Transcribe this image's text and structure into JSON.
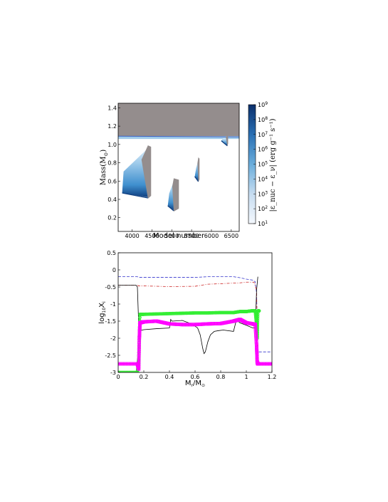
{
  "chart_data": [
    {
      "type": "heatmap",
      "xlabel": "Model number",
      "ylabel": "Mass(M",
      "ylabel_sub": "⊙",
      "ylabel_end": ")",
      "xlim": [
        3650,
        6700
      ],
      "ylim": [
        0.05,
        1.45
      ],
      "xticks": [
        4000,
        4500,
        5000,
        5500,
        6000,
        6500
      ],
      "yticks": [
        0.2,
        0.4,
        0.6,
        0.8,
        1.0,
        1.2,
        1.4
      ],
      "colorbar": {
        "label": "|ε_nuc − ε_ν|  (erg g⁻¹ s⁻¹)",
        "scale": "log",
        "ticks_base": "10",
        "ticks_exp": [
          "1",
          "2",
          "3",
          "4",
          "5",
          "6",
          "7",
          "8",
          "9"
        ],
        "range": [
          1,
          9
        ]
      },
      "colors": {
        "convective": "#948d8d",
        "dark_blue": "#0f3f80",
        "mid_blue": "#3f8fce",
        "light_blue": "#9fcbeb",
        "line": "#3b5fc0"
      },
      "regions": [
        {
          "kind": "envelope",
          "x": [
            3650,
            6700
          ],
          "y_bottom": 1.09,
          "y_top": 1.45
        },
        {
          "kind": "burning_band",
          "x": [
            3650,
            6700
          ],
          "y": [
            1.06,
            1.09
          ]
        },
        {
          "kind": "flash",
          "x_start": 3750,
          "x_peak": 4400,
          "x_end": 4480,
          "y_bottom": 0.47,
          "y_top": 0.99
        },
        {
          "kind": "flash",
          "x_start": 4900,
          "x_peak": 5050,
          "x_end": 5180,
          "y_bottom": 0.33,
          "y_top": 0.63
        },
        {
          "kind": "flash",
          "x_start": 5580,
          "x_peak": 5670,
          "x_end": 5700,
          "y_bottom": 0.65,
          "y_top": 0.86
        },
        {
          "kind": "flash",
          "x_start": 6250,
          "x_peak": 6400,
          "x_end": 6420,
          "y_bottom": 1.04,
          "y_top": 1.1
        }
      ]
    },
    {
      "type": "line",
      "xlabel": "M",
      "xlabel_sub": "r",
      "xlabel_mid": "/M",
      "xlabel_sub2": "⊙",
      "ylabel": "log",
      "ylabel_sub": "10",
      "ylabel_end": "X",
      "ylabel_sub2": "i",
      "xlim": [
        0,
        1.2
      ],
      "ylim": [
        -3,
        0.5
      ],
      "xticks": [
        "0",
        "0.2",
        "0.4",
        "0.6",
        "0.8",
        "1",
        "1.2"
      ],
      "yticks": [
        "0.5",
        "0",
        "-0.5",
        "-1",
        "-1.5",
        "-2",
        "-2.5",
        "-3"
      ],
      "series": [
        {
          "color": "#3333cc",
          "style": "dashed",
          "x": [
            0,
            0.15,
            0.16,
            0.2,
            0.4,
            0.6,
            0.7,
            0.9,
            0.95,
            1.0,
            1.05,
            1.07,
            1.08,
            1.09,
            1.2
          ],
          "y": [
            -0.2,
            -0.2,
            -0.22,
            -0.22,
            -0.22,
            -0.22,
            -0.2,
            -0.2,
            -0.23,
            -0.27,
            -0.3,
            -0.35,
            -0.7,
            -2.4,
            -2.4
          ]
        },
        {
          "color": "#cc2222",
          "style": "dashdot",
          "x": [
            0,
            0.15,
            0.16,
            0.2,
            0.4,
            0.6,
            0.7,
            0.95,
            1.0,
            1.06,
            1.08,
            1.09
          ],
          "y": [
            -0.45,
            -0.45,
            -0.47,
            -0.47,
            -0.49,
            -0.48,
            -0.42,
            -0.38,
            -0.36,
            -0.36,
            -0.6,
            -2.6
          ]
        },
        {
          "color": "#000000",
          "style": "solid",
          "x": [
            0,
            0.14,
            0.15,
            0.16,
            0.17,
            0.2,
            0.3,
            0.4,
            0.41,
            0.42,
            0.5,
            0.55,
            0.6,
            0.62,
            0.64,
            0.66,
            0.67,
            0.68,
            0.7,
            0.72,
            0.75,
            0.78,
            0.82,
            0.9,
            0.92,
            0.93,
            0.95,
            1.0,
            1.05,
            1.07,
            1.08,
            1.09
          ],
          "y": [
            -0.45,
            -0.45,
            -0.5,
            -1.6,
            -1.78,
            -1.75,
            -1.72,
            -1.7,
            -1.45,
            -1.5,
            -1.48,
            -1.55,
            -1.65,
            -1.7,
            -1.9,
            -2.3,
            -2.45,
            -2.4,
            -2.1,
            -1.9,
            -1.8,
            -1.78,
            -1.76,
            -1.8,
            -1.5,
            -1.48,
            -1.55,
            -1.62,
            -1.7,
            -1.7,
            -0.6,
            -0.2
          ]
        },
        {
          "color": "#33ee33",
          "style": "circles",
          "x": [
            0,
            0.15,
            0.16,
            0.17,
            0.2,
            0.3,
            0.4,
            0.5,
            0.6,
            0.7,
            0.8,
            0.9,
            0.95,
            1.0,
            1.04,
            1.06,
            1.07,
            1.08,
            1.085,
            1.09,
            1.1
          ],
          "y": [
            -3.0,
            -3.0,
            -2.6,
            -1.3,
            -1.3,
            -1.29,
            -1.28,
            -1.27,
            -1.26,
            -1.26,
            -1.25,
            -1.25,
            -1.22,
            -1.22,
            -1.2,
            -1.2,
            -1.2,
            -1.6,
            -2.0,
            -1.2,
            -1.2
          ]
        },
        {
          "color": "#ff00ff",
          "style": "squares",
          "x": [
            0,
            0.15,
            0.16,
            0.165,
            0.17,
            0.2,
            0.3,
            0.4,
            0.5,
            0.6,
            0.7,
            0.8,
            0.9,
            0.95,
            1.0,
            1.05,
            1.07,
            1.08,
            1.085,
            1.09,
            1.1,
            1.2
          ],
          "y": [
            -2.75,
            -2.75,
            -2.9,
            -2.0,
            -1.55,
            -1.52,
            -1.5,
            -1.58,
            -1.6,
            -1.6,
            -1.58,
            -1.57,
            -1.5,
            -1.45,
            -1.55,
            -1.58,
            -1.6,
            -2.2,
            -2.7,
            -2.75,
            -2.75,
            -2.75
          ]
        }
      ]
    }
  ]
}
